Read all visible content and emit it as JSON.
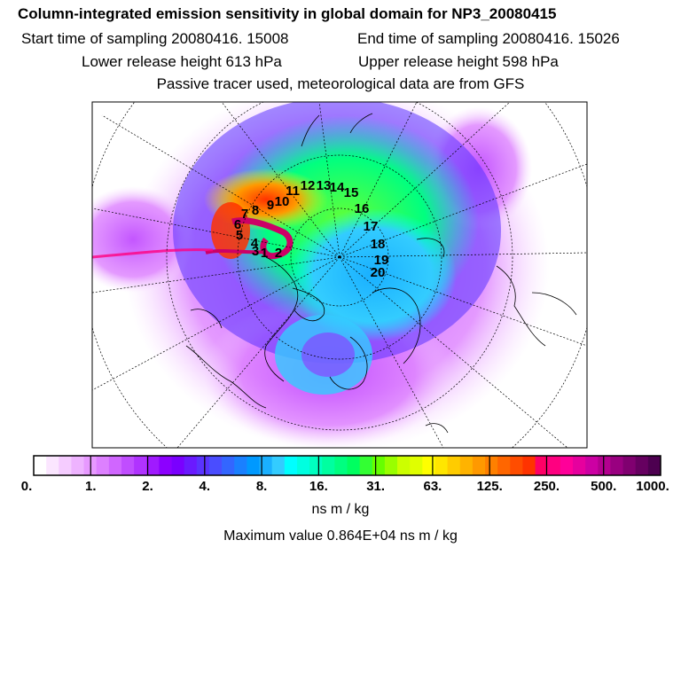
{
  "header": {
    "title": "Column-integrated emission sensitivity in global domain for NP3_20080415",
    "start_label": "Start time of sampling 20080416. 15008",
    "end_label": "End time of sampling 20080416. 15026",
    "lower_label": "Lower release height  613 hPa",
    "upper_label": "Upper release height  598 hPa",
    "tracer_note": "Passive tracer used, meteorological data are from GFS"
  },
  "chart_data": {
    "type": "heatmap",
    "projection": "polar stereographic (north pole)",
    "colorbar": {
      "ticks": [
        "0.",
        "1.",
        "2.",
        "4.",
        "8.",
        "16.",
        "31.",
        "63.",
        "125.",
        "250.",
        "500.",
        "1000."
      ],
      "colors": [
        "#ffffff",
        "#fbe6ff",
        "#f5ccff",
        "#eeb3ff",
        "#e799ff",
        "#dd80ff",
        "#d066ff",
        "#c04dff",
        "#b033ff",
        "#a01aff",
        "#8c00ff",
        "#7a00ff",
        "#6a1aff",
        "#5a33ff",
        "#4a4dff",
        "#3366ff",
        "#1a80ff",
        "#0099ff",
        "#1ab0ff",
        "#33ccff",
        "#00ffff",
        "#00ffe0",
        "#00ffc0",
        "#00ffa0",
        "#00ff80",
        "#00ff60",
        "#33ff33",
        "#66ff00",
        "#99ff00",
        "#ccff00",
        "#e0ff00",
        "#ffff00",
        "#ffe600",
        "#ffcc00",
        "#ffb300",
        "#ff9900",
        "#ff8000",
        "#ff6600",
        "#ff4d00",
        "#ff3300",
        "#ff0066",
        "#ff0080",
        "#ff0099",
        "#e6009e",
        "#cc00a3",
        "#b3008f",
        "#990080",
        "#800070",
        "#660060",
        "#4d0050"
      ],
      "units": "ns m / kg"
    },
    "max_value_label": "Maximum value  0.864E+04 ns m / kg",
    "trajectory_labels": [
      "1",
      "2",
      "3",
      "4",
      "5",
      "6",
      "7",
      "8",
      "9",
      "10",
      "11",
      "12",
      "13",
      "14",
      "15",
      "16",
      "17",
      "18",
      "19",
      "20"
    ]
  }
}
